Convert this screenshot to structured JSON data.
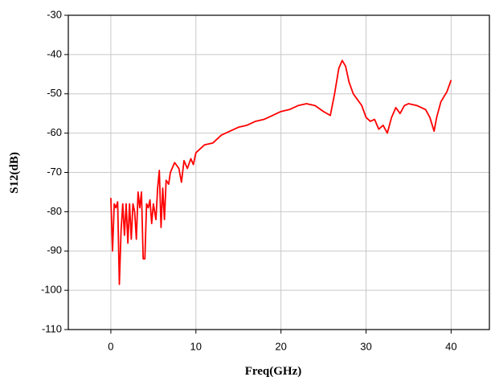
{
  "chart_data": {
    "type": "line",
    "x_label": "Freq(GHz)",
    "y_label": "S12(dB)",
    "color": "#ff0000",
    "grid": true,
    "xlim": [
      -5,
      44.5
    ],
    "ylim": [
      -110,
      -30
    ],
    "xticks": [
      0,
      10,
      20,
      30,
      40
    ],
    "yticks": [
      -110,
      -100,
      -90,
      -80,
      -70,
      -60,
      -50,
      -40,
      -30
    ],
    "x": [
      0,
      0.2,
      0.4,
      0.6,
      0.8,
      1.0,
      1.2,
      1.4,
      1.6,
      1.8,
      2.0,
      2.2,
      2.4,
      2.6,
      2.8,
      3.0,
      3.2,
      3.4,
      3.6,
      3.8,
      4.0,
      4.2,
      4.4,
      4.6,
      4.8,
      5.0,
      5.3,
      5.5,
      5.7,
      5.9,
      6.1,
      6.3,
      6.5,
      6.8,
      7.0,
      7.5,
      8.0,
      8.3,
      8.6,
      9.0,
      9.4,
      9.7,
      10,
      11,
      12,
      13,
      14,
      15,
      16,
      17,
      18,
      19,
      20,
      21,
      22,
      23,
      24,
      25,
      25.8,
      26.3,
      26.8,
      27.2,
      27.6,
      28.0,
      28.5,
      29,
      29.5,
      30,
      30.5,
      31,
      31.5,
      32,
      32.5,
      33,
      33.5,
      34,
      34.5,
      35,
      36,
      37,
      37.5,
      38,
      38.3,
      38.8,
      39.5,
      40
    ],
    "values": [
      -76.5,
      -90,
      -78,
      -79,
      -77.5,
      -98.5,
      -85,
      -78,
      -86,
      -78,
      -88,
      -78,
      -87,
      -78,
      -80,
      -87,
      -75,
      -79,
      -75,
      -92,
      -92,
      -78,
      -79,
      -77,
      -83,
      -78,
      -82,
      -74,
      -69.5,
      -84,
      -74,
      -82,
      -72,
      -73,
      -70,
      -67.5,
      -69,
      -72.5,
      -67,
      -69,
      -66.5,
      -68,
      -65,
      -63,
      -62.5,
      -60.5,
      -59.5,
      -58.5,
      -58,
      -57,
      -56.5,
      -55.5,
      -54.5,
      -54,
      -53,
      -52.5,
      -53,
      -54.5,
      -55.5,
      -50,
      -43.5,
      -41.5,
      -43,
      -47,
      -50,
      -51.5,
      -53,
      -56,
      -57,
      -56.5,
      -59,
      -58,
      -60,
      -56,
      -53.5,
      -55,
      -53,
      -52.5,
      -53,
      -54,
      -56,
      -59.5,
      -56,
      -52,
      -49.5,
      -46.5
    ]
  }
}
